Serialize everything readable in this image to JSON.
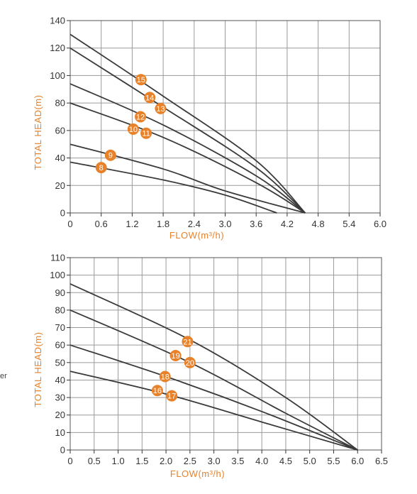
{
  "edge_fragment": "er",
  "colors": {
    "accent": "#e8822a",
    "curve": "#3a3a3a",
    "grid": "#9a9a9a",
    "axis_text": "#333333"
  },
  "chart_data": [
    {
      "type": "line",
      "xlabel": "FLOW(m³/h)",
      "ylabel": "TOTAL HEAD(m)",
      "xlim": [
        0,
        6.0
      ],
      "ylim": [
        0,
        140
      ],
      "xticks": [
        "0",
        "0.6",
        "1.2",
        "1.8",
        "2.4",
        "3.0",
        "3.6",
        "4.2",
        "4.8",
        "5.4",
        "6.0"
      ],
      "xtick_values": [
        0,
        0.6,
        1.2,
        1.8,
        2.4,
        3.0,
        3.6,
        4.2,
        4.8,
        5.4,
        6.0
      ],
      "yticks": [
        "0",
        "20",
        "40",
        "60",
        "80",
        "100",
        "120",
        "140"
      ],
      "ytick_values": [
        0,
        20,
        40,
        60,
        80,
        100,
        120,
        140
      ],
      "grid": true,
      "series": [
        {
          "points": [
            [
              0,
              130
            ],
            [
              1.8,
              85
            ],
            [
              3.6,
              38
            ],
            [
              4.55,
              0
            ]
          ]
        },
        {
          "points": [
            [
              0,
              120
            ],
            [
              1.8,
              77
            ],
            [
              3.6,
              33
            ],
            [
              4.55,
              0
            ]
          ]
        },
        {
          "points": [
            [
              0,
              94
            ],
            [
              1.8,
              64
            ],
            [
              3.6,
              27
            ],
            [
              4.55,
              0
            ]
          ]
        },
        {
          "points": [
            [
              0,
              80
            ],
            [
              1.8,
              55
            ],
            [
              3.6,
              22
            ],
            [
              4.55,
              0
            ]
          ]
        },
        {
          "points": [
            [
              0,
              50
            ],
            [
              1.8,
              32
            ],
            [
              3.0,
              16
            ],
            [
              4.55,
              0
            ]
          ]
        },
        {
          "points": [
            [
              0,
              37
            ],
            [
              1.8,
              24
            ],
            [
              3.0,
              13
            ],
            [
              4.0,
              0
            ]
          ]
        }
      ],
      "markers": [
        {
          "label": "15",
          "x": 1.37,
          "y": 97
        },
        {
          "label": "14",
          "x": 1.54,
          "y": 84
        },
        {
          "label": "13",
          "x": 1.75,
          "y": 76
        },
        {
          "label": "12",
          "x": 1.36,
          "y": 70
        },
        {
          "label": "10",
          "x": 1.22,
          "y": 61
        },
        {
          "label": "11",
          "x": 1.47,
          "y": 58
        },
        {
          "label": "9",
          "x": 0.78,
          "y": 42
        },
        {
          "label": "8",
          "x": 0.6,
          "y": 33
        }
      ]
    },
    {
      "type": "line",
      "xlabel": "FLOW(m³/h)",
      "ylabel": "TOTAL HEAD(m)",
      "xlim": [
        0,
        6.5
      ],
      "ylim": [
        0,
        110
      ],
      "xticks": [
        "0",
        "0.5",
        "1.0",
        "1.5",
        "2.0",
        "2.5",
        "3.0",
        "3.5",
        "4.0",
        "4.5",
        "5.0",
        "5.5",
        "6.0",
        "6.5"
      ],
      "xtick_values": [
        0,
        0.5,
        1.0,
        1.5,
        2.0,
        2.5,
        3.0,
        3.5,
        4.0,
        4.5,
        5.0,
        5.5,
        6.0,
        6.5
      ],
      "yticks": [
        "0",
        "10",
        "20",
        "30",
        "40",
        "50",
        "60",
        "70",
        "80",
        "90",
        "100",
        "110"
      ],
      "ytick_values": [
        0,
        10,
        20,
        30,
        40,
        50,
        60,
        70,
        80,
        90,
        100,
        110
      ],
      "grid": true,
      "series": [
        {
          "points": [
            [
              0,
              95
            ],
            [
              2.5,
              63
            ],
            [
              4.5,
              30
            ],
            [
              6.0,
              0
            ]
          ]
        },
        {
          "points": [
            [
              0,
              80
            ],
            [
              2.5,
              50
            ],
            [
              4.5,
              21
            ],
            [
              6.0,
              0
            ]
          ]
        },
        {
          "points": [
            [
              0,
              60
            ],
            [
              2.0,
              42
            ],
            [
              4.0,
              22
            ],
            [
              6.0,
              0
            ]
          ]
        },
        {
          "points": [
            [
              0,
              45
            ],
            [
              2.0,
              32
            ],
            [
              4.0,
              16
            ],
            [
              6.0,
              0
            ]
          ]
        }
      ],
      "markers": [
        {
          "label": "21",
          "x": 2.45,
          "y": 62
        },
        {
          "label": "19",
          "x": 2.2,
          "y": 54
        },
        {
          "label": "20",
          "x": 2.5,
          "y": 50
        },
        {
          "label": "18",
          "x": 1.98,
          "y": 42
        },
        {
          "label": "16",
          "x": 1.82,
          "y": 34
        },
        {
          "label": "17",
          "x": 2.12,
          "y": 31
        }
      ]
    }
  ]
}
